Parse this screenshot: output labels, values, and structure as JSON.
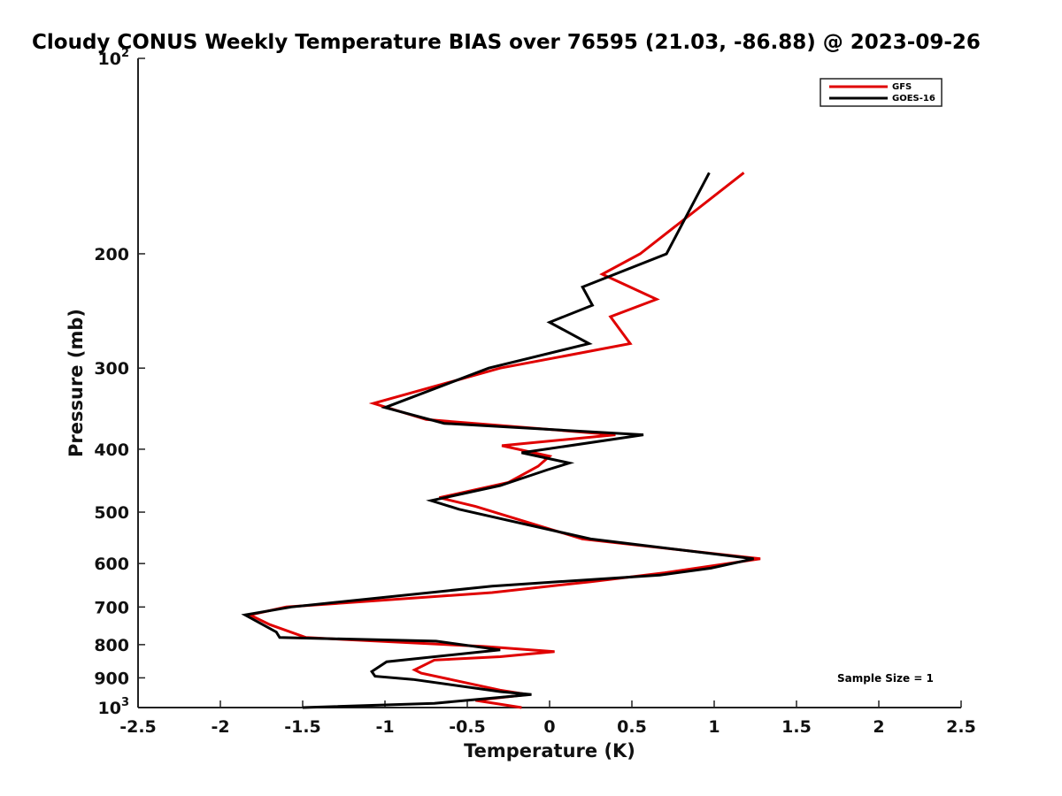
{
  "chart_data": {
    "type": "line",
    "title": "Cloudy CONUS Weekly Temperature BIAS over 76595 (21.03, -86.88) @ 2023-09-26",
    "xlabel": "Temperature (K)",
    "ylabel": "Pressure (mb)",
    "xlim": [
      -2.5,
      2.5
    ],
    "ylim": [
      1000,
      100
    ],
    "yscale": "log",
    "y_reversed": true,
    "x_ticks": [
      "-2.5",
      "-2",
      "-1.5",
      "-1",
      "-0.5",
      "0",
      "0.5",
      "1",
      "1.5",
      "2",
      "2.5"
    ],
    "x_tick_values": [
      -2.5,
      -2,
      -1.5,
      -1,
      -0.5,
      0,
      0.5,
      1,
      1.5,
      2,
      2.5
    ],
    "y_ticks": [
      {
        "value": 100,
        "base": "10",
        "exp": "2"
      },
      {
        "value": 200,
        "label": "200"
      },
      {
        "value": 300,
        "label": "300"
      },
      {
        "value": 400,
        "label": "400"
      },
      {
        "value": 500,
        "label": "500"
      },
      {
        "value": 600,
        "label": "600"
      },
      {
        "value": 700,
        "label": "700"
      },
      {
        "value": 800,
        "label": "800"
      },
      {
        "value": 900,
        "label": "900"
      },
      {
        "value": 1000,
        "base": "10",
        "exp": "3"
      }
    ],
    "grid": false,
    "legend_position": "top-right",
    "annotation": "Sample Size = 1",
    "series": [
      {
        "name": "GFS",
        "color": "#e00000",
        "points": [
          [
            1.18,
            150
          ],
          [
            0.55,
            200
          ],
          [
            0.32,
            215
          ],
          [
            0.65,
            235
          ],
          [
            0.37,
            250
          ],
          [
            0.49,
            275
          ],
          [
            -0.3,
            300
          ],
          [
            -1.07,
            340
          ],
          [
            -0.75,
            360
          ],
          [
            0.4,
            380
          ],
          [
            -0.29,
            395
          ],
          [
            0.0,
            410
          ],
          [
            -0.07,
            425
          ],
          [
            -0.25,
            450
          ],
          [
            -0.67,
            475
          ],
          [
            -0.45,
            490
          ],
          [
            0.2,
            550
          ],
          [
            1.28,
            590
          ],
          [
            0.7,
            620
          ],
          [
            0.25,
            640
          ],
          [
            -0.35,
            665
          ],
          [
            -1.6,
            700
          ],
          [
            -1.82,
            720
          ],
          [
            -1.7,
            745
          ],
          [
            -1.48,
            780
          ],
          [
            -0.4,
            805
          ],
          [
            0.03,
            820
          ],
          [
            -0.3,
            835
          ],
          [
            -0.7,
            845
          ],
          [
            -0.82,
            875
          ],
          [
            -0.78,
            885
          ],
          [
            -0.3,
            940
          ],
          [
            -0.13,
            955
          ],
          [
            -0.45,
            975
          ],
          [
            -0.17,
            1000
          ]
        ]
      },
      {
        "name": "GOES-16",
        "color": "#000000",
        "points": [
          [
            0.97,
            150
          ],
          [
            0.71,
            200
          ],
          [
            0.2,
            225
          ],
          [
            0.26,
            240
          ],
          [
            0.0,
            255
          ],
          [
            0.24,
            275
          ],
          [
            -0.37,
            300
          ],
          [
            -1.0,
            345
          ],
          [
            -0.64,
            365
          ],
          [
            0.57,
            380
          ],
          [
            -0.17,
            405
          ],
          [
            0.12,
            420
          ],
          [
            -0.01,
            430
          ],
          [
            -0.3,
            455
          ],
          [
            -0.72,
            480
          ],
          [
            -0.55,
            495
          ],
          [
            0.25,
            550
          ],
          [
            1.24,
            590
          ],
          [
            0.98,
            610
          ],
          [
            0.67,
            625
          ],
          [
            -0.35,
            650
          ],
          [
            -1.57,
            700
          ],
          [
            -1.85,
            720
          ],
          [
            -1.66,
            765
          ],
          [
            -1.64,
            780
          ],
          [
            -0.69,
            790
          ],
          [
            -0.3,
            815
          ],
          [
            -0.99,
            850
          ],
          [
            -1.08,
            880
          ],
          [
            -1.06,
            895
          ],
          [
            -0.83,
            905
          ],
          [
            -0.3,
            945
          ],
          [
            -0.11,
            955
          ],
          [
            -0.7,
            985
          ],
          [
            -1.5,
            1000
          ]
        ]
      }
    ]
  }
}
